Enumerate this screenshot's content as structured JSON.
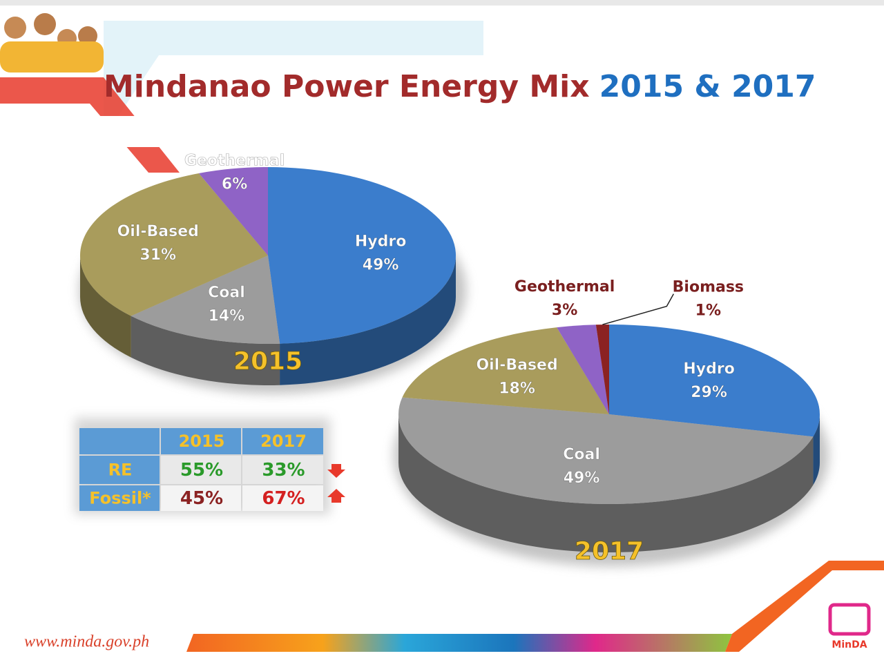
{
  "title_main": "Mindanao Power Energy Mix",
  "title_years": "2015 & 2017",
  "chart_data": [
    {
      "type": "pie",
      "title": "2015",
      "categories": [
        "Hydro",
        "Coal",
        "Oil-Based",
        "Geothermal"
      ],
      "values": [
        49,
        14,
        31,
        6
      ],
      "value_labels": [
        "49%",
        "14%",
        "31%",
        "6%"
      ],
      "colors": [
        "#3b7dcc",
        "#9c9c9c",
        "#a99c5c",
        "#8f63c6"
      ]
    },
    {
      "type": "pie",
      "title": "2017",
      "categories": [
        "Hydro",
        "Coal",
        "Oil-Based",
        "Geothermal",
        "Biomass"
      ],
      "values": [
        29,
        49,
        18,
        3,
        1
      ],
      "value_labels": [
        "29%",
        "49%",
        "18%",
        "3%",
        "1%"
      ],
      "colors": [
        "#3b7dcc",
        "#9c9c9c",
        "#a99c5c",
        "#8f63c6",
        "#8b2222"
      ]
    }
  ],
  "table": {
    "columns": [
      "2015",
      "2017"
    ],
    "rows": [
      {
        "label": "RE",
        "values": [
          "55%",
          "33%"
        ]
      },
      {
        "label": "Fossil*",
        "values": [
          "45%",
          "67%"
        ]
      }
    ]
  },
  "footer": {
    "url": "www.minda.gov.ph",
    "logo": "MinDA"
  }
}
